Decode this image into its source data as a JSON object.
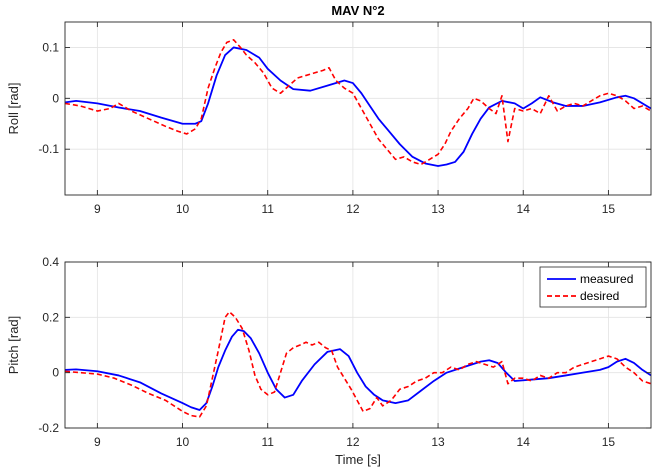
{
  "figure": {
    "title": "MAV N°2"
  },
  "chart_data": [
    {
      "type": "line",
      "ylabel": "Roll [rad]",
      "xlabel": "",
      "xlim": [
        8.62,
        15.5
      ],
      "ylim": [
        -0.19,
        0.15
      ],
      "grid": true,
      "xticks": [
        9,
        10,
        11,
        12,
        13,
        14,
        15
      ],
      "xtick_labels": [
        "9",
        "10",
        "11",
        "12",
        "13",
        "14",
        "15"
      ],
      "yticks": [
        0.1,
        0,
        -0.1
      ],
      "ytick_labels": [
        "0.1",
        "0",
        "-0.1"
      ],
      "series": [
        {
          "name": "measured",
          "color": "#0000ff",
          "dash": "solid",
          "x": [
            8.62,
            8.75,
            9.0,
            9.25,
            9.5,
            9.75,
            10.0,
            10.15,
            10.22,
            10.3,
            10.4,
            10.5,
            10.6,
            10.75,
            10.9,
            11.0,
            11.15,
            11.3,
            11.5,
            11.7,
            11.9,
            12.0,
            12.1,
            12.2,
            12.3,
            12.4,
            12.55,
            12.7,
            12.85,
            13.0,
            13.1,
            13.2,
            13.3,
            13.4,
            13.5,
            13.6,
            13.75,
            13.9,
            14.0,
            14.1,
            14.2,
            14.35,
            14.5,
            14.7,
            14.9,
            15.1,
            15.2,
            15.3,
            15.5
          ],
          "y": [
            -0.008,
            -0.005,
            -0.01,
            -0.018,
            -0.025,
            -0.038,
            -0.05,
            -0.05,
            -0.045,
            -0.01,
            0.045,
            0.085,
            0.1,
            0.095,
            0.08,
            0.058,
            0.035,
            0.018,
            0.015,
            0.025,
            0.035,
            0.03,
            0.01,
            -0.015,
            -0.04,
            -0.06,
            -0.09,
            -0.115,
            -0.128,
            -0.133,
            -0.13,
            -0.125,
            -0.105,
            -0.07,
            -0.04,
            -0.018,
            -0.005,
            -0.01,
            -0.02,
            -0.01,
            0.002,
            -0.008,
            -0.015,
            -0.015,
            -0.008,
            0.002,
            0.005,
            0.0,
            -0.02
          ]
        },
        {
          "name": "desired",
          "color": "#ff0000",
          "dash": "dashed",
          "x": [
            8.62,
            8.8,
            9.0,
            9.15,
            9.25,
            9.4,
            9.6,
            9.8,
            9.95,
            10.05,
            10.15,
            10.22,
            10.3,
            10.38,
            10.45,
            10.52,
            10.6,
            10.68,
            10.75,
            10.85,
            10.95,
            11.05,
            11.15,
            11.25,
            11.35,
            11.45,
            11.55,
            11.65,
            11.72,
            11.8,
            11.9,
            12.0,
            12.1,
            12.2,
            12.3,
            12.4,
            12.5,
            12.6,
            12.7,
            12.8,
            12.9,
            13.0,
            13.08,
            13.15,
            13.25,
            13.35,
            13.42,
            13.5,
            13.6,
            13.68,
            13.75,
            13.82,
            13.9,
            14.0,
            14.1,
            14.2,
            14.3,
            14.4,
            14.5,
            14.6,
            14.7,
            14.8,
            14.9,
            15.0,
            15.1,
            15.2,
            15.3,
            15.4,
            15.5
          ],
          "y": [
            -0.01,
            -0.015,
            -0.025,
            -0.02,
            -0.01,
            -0.025,
            -0.04,
            -0.055,
            -0.065,
            -0.07,
            -0.06,
            -0.04,
            0.02,
            0.06,
            0.09,
            0.11,
            0.115,
            0.1,
            0.085,
            0.07,
            0.05,
            0.02,
            0.01,
            0.025,
            0.04,
            0.045,
            0.05,
            0.055,
            0.06,
            0.035,
            0.02,
            0.01,
            -0.02,
            -0.05,
            -0.08,
            -0.1,
            -0.12,
            -0.115,
            -0.125,
            -0.13,
            -0.12,
            -0.11,
            -0.09,
            -0.065,
            -0.04,
            -0.02,
            0.0,
            -0.005,
            -0.02,
            -0.03,
            0.005,
            -0.085,
            -0.02,
            -0.025,
            -0.02,
            -0.03,
            0.005,
            -0.025,
            -0.015,
            -0.01,
            -0.015,
            -0.005,
            0.005,
            0.01,
            0.005,
            -0.005,
            -0.02,
            -0.015,
            -0.025
          ]
        }
      ]
    },
    {
      "type": "line",
      "ylabel": "Pitch [rad]",
      "xlabel": "Time [s]",
      "xlim": [
        8.62,
        15.5
      ],
      "ylim": [
        -0.2,
        0.4
      ],
      "grid": true,
      "xticks": [
        9,
        10,
        11,
        12,
        13,
        14,
        15
      ],
      "xtick_labels": [
        "9",
        "10",
        "11",
        "12",
        "13",
        "14",
        "15"
      ],
      "yticks": [
        0.4,
        0.2,
        0,
        -0.2
      ],
      "ytick_labels": [
        "0.4",
        "0.2",
        "0",
        "-0.2"
      ],
      "legend": {
        "position": "top-right",
        "entries": [
          "measured",
          "desired"
        ]
      },
      "series": [
        {
          "name": "measured",
          "color": "#0000ff",
          "dash": "solid",
          "x": [
            8.62,
            8.75,
            9.0,
            9.25,
            9.5,
            9.75,
            10.0,
            10.1,
            10.2,
            10.28,
            10.35,
            10.42,
            10.5,
            10.58,
            10.65,
            10.72,
            10.8,
            10.9,
            11.0,
            11.1,
            11.2,
            11.3,
            11.4,
            11.55,
            11.7,
            11.85,
            11.95,
            12.05,
            12.15,
            12.25,
            12.35,
            12.5,
            12.65,
            12.8,
            12.95,
            13.1,
            13.25,
            13.4,
            13.5,
            13.6,
            13.7,
            13.8,
            13.9,
            14.1,
            14.3,
            14.5,
            14.7,
            14.9,
            15.0,
            15.1,
            15.2,
            15.3,
            15.4,
            15.5
          ],
          "y": [
            0.01,
            0.012,
            0.005,
            -0.01,
            -0.035,
            -0.075,
            -0.11,
            -0.125,
            -0.135,
            -0.11,
            -0.05,
            0.02,
            0.08,
            0.13,
            0.155,
            0.15,
            0.125,
            0.07,
            0.0,
            -0.06,
            -0.09,
            -0.08,
            -0.03,
            0.03,
            0.075,
            0.085,
            0.06,
            0.0,
            -0.05,
            -0.08,
            -0.1,
            -0.11,
            -0.1,
            -0.065,
            -0.03,
            0.0,
            0.015,
            0.03,
            0.04,
            0.045,
            0.035,
            0.0,
            -0.03,
            -0.025,
            -0.02,
            -0.01,
            0.0,
            0.01,
            0.02,
            0.04,
            0.05,
            0.035,
            0.01,
            -0.01
          ]
        },
        {
          "name": "desired",
          "color": "#ff0000",
          "dash": "dashed",
          "x": [
            8.62,
            8.8,
            9.0,
            9.2,
            9.4,
            9.6,
            9.8,
            10.0,
            10.1,
            10.2,
            10.28,
            10.35,
            10.42,
            10.5,
            10.55,
            10.62,
            10.7,
            10.78,
            10.85,
            10.92,
            11.0,
            11.08,
            11.15,
            11.22,
            11.3,
            11.38,
            11.45,
            11.52,
            11.6,
            11.68,
            11.75,
            11.82,
            11.9,
            11.98,
            12.05,
            12.12,
            12.2,
            12.28,
            12.35,
            12.45,
            12.55,
            12.65,
            12.75,
            12.85,
            12.95,
            13.05,
            13.15,
            13.25,
            13.35,
            13.45,
            13.55,
            13.65,
            13.75,
            13.82,
            13.9,
            14.0,
            14.1,
            14.2,
            14.3,
            14.4,
            14.5,
            14.6,
            14.7,
            14.8,
            14.9,
            15.0,
            15.1,
            15.2,
            15.3,
            15.4,
            15.5
          ],
          "y": [
            0.005,
            0.0,
            -0.005,
            -0.02,
            -0.045,
            -0.075,
            -0.1,
            -0.14,
            -0.155,
            -0.16,
            -0.12,
            -0.02,
            0.08,
            0.2,
            0.22,
            0.2,
            0.16,
            0.08,
            -0.01,
            -0.06,
            -0.08,
            -0.07,
            0.0,
            0.07,
            0.09,
            0.1,
            0.11,
            0.1,
            0.11,
            0.09,
            0.08,
            0.02,
            -0.02,
            -0.06,
            -0.1,
            -0.14,
            -0.13,
            -0.09,
            -0.12,
            -0.1,
            -0.06,
            -0.05,
            -0.03,
            -0.02,
            0.0,
            0.0,
            0.02,
            0.01,
            0.03,
            0.04,
            0.03,
            0.02,
            0.04,
            -0.04,
            -0.02,
            -0.02,
            -0.03,
            -0.01,
            -0.02,
            0.0,
            0.0,
            0.02,
            0.03,
            0.04,
            0.05,
            0.06,
            0.05,
            0.02,
            0.0,
            -0.03,
            -0.04
          ]
        }
      ]
    }
  ]
}
